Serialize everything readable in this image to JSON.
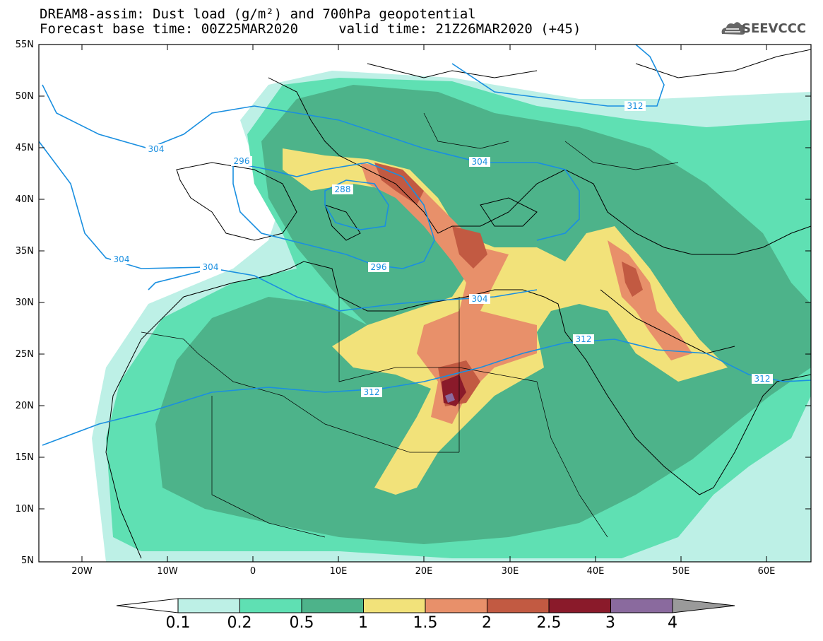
{
  "header": {
    "title_line1": "DREAM8-assim: Dust load (g/m²) and 700hPa geopotential",
    "title_line2": "Forecast base time: 00Z25MAR2020     valid time: 21Z26MAR2020 (+45)",
    "logo_text": "SEEVCCC",
    "logo_icon": "cloud-logo-icon"
  },
  "map": {
    "background_color": "#ffffff",
    "latitude_labels": [
      "55N",
      "50N",
      "45N",
      "40N",
      "35N",
      "30N",
      "25N",
      "20N",
      "15N",
      "10N",
      "5N"
    ],
    "longitude_labels": [
      "20W",
      "10W",
      "0",
      "10E",
      "20E",
      "30E",
      "40E",
      "50E",
      "60E"
    ],
    "contour_labels": [
      "304",
      "312",
      "296",
      "304",
      "288",
      "304",
      "304",
      "296",
      "304",
      "312",
      "312",
      "312"
    ],
    "colors": {
      "c01": "#bdf0e6",
      "c02": "#5fe0b3",
      "c05": "#4db38a",
      "c1": "#f2e27a",
      "c15": "#e8906a",
      "c2": "#c25a42",
      "c25": "#8a1a2a",
      "c3": "#8a6a9e",
      "contour": "#1a8fe0",
      "coast": "#000000"
    }
  },
  "colorbar": {
    "labels": [
      "0.1",
      "0.2",
      "0.5",
      "1",
      "1.5",
      "2",
      "2.5",
      "3",
      "4"
    ],
    "colors": [
      "#bdf0e6",
      "#5fe0b3",
      "#4db38a",
      "#f2e27a",
      "#e8906a",
      "#c25a42",
      "#8a1a2a",
      "#8a6a9e"
    ],
    "low_end_color": "#ffffff",
    "high_end_color": "#9a9a9a"
  }
}
